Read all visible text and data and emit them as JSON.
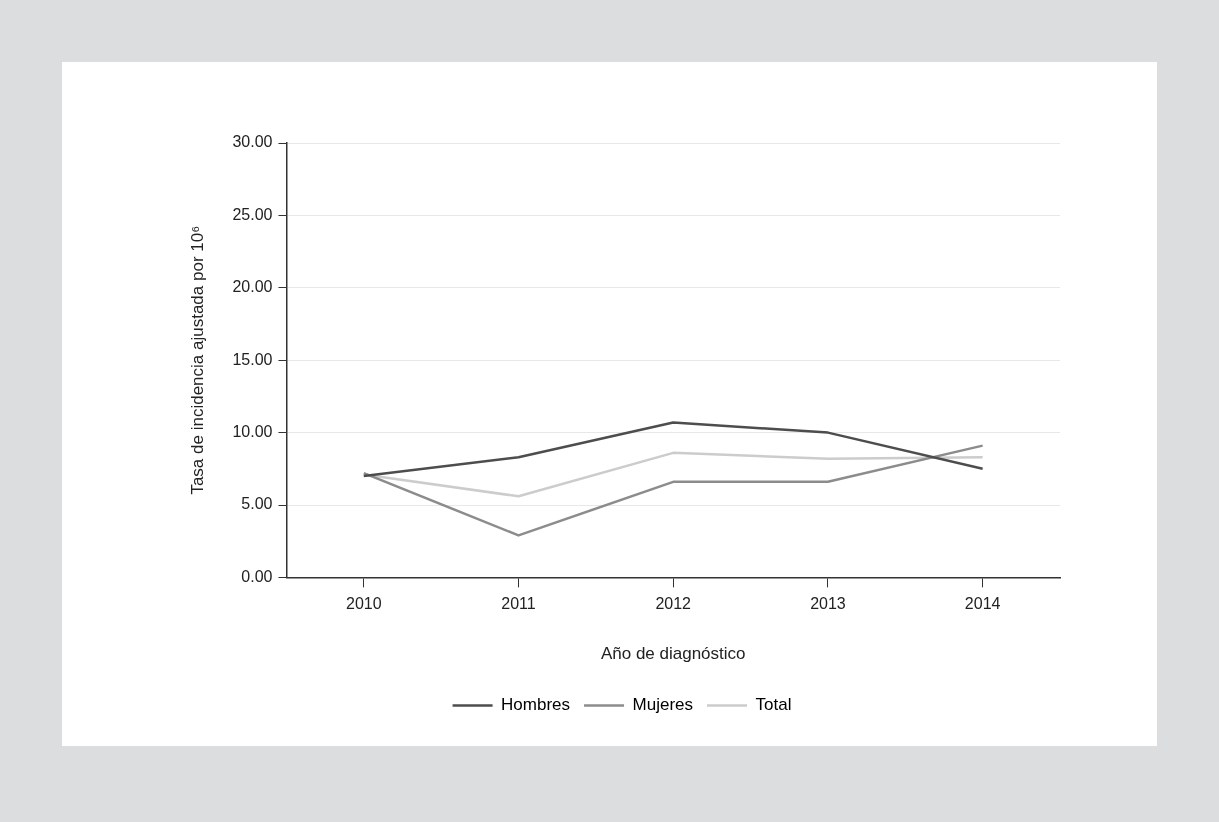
{
  "chart_data": {
    "type": "line",
    "xlabel": "Año de diagnóstico",
    "ylabel": "Tasa de incidencia ajustada por 10⁶",
    "categories": [
      "2010",
      "2011",
      "2012",
      "2013",
      "2014"
    ],
    "series": [
      {
        "name": "Hombres",
        "color": "#4d4d4d",
        "values": [
          7.0,
          8.3,
          10.7,
          10.0,
          7.5
        ]
      },
      {
        "name": "Mujeres",
        "color": "#8c8c8c",
        "values": [
          7.2,
          2.9,
          6.6,
          6.6,
          9.1
        ]
      },
      {
        "name": "Total",
        "color": "#cccccc",
        "values": [
          7.1,
          5.6,
          8.6,
          8.2,
          8.3
        ]
      }
    ],
    "ylim": [
      0,
      30
    ],
    "yticks": [
      {
        "value": 0,
        "label": "0.00"
      },
      {
        "value": 5,
        "label": "5.00"
      },
      {
        "value": 10,
        "label": "10.00"
      },
      {
        "value": 15,
        "label": "15.00"
      },
      {
        "value": 20,
        "label": "20.00"
      },
      {
        "value": 25,
        "label": "25.00"
      },
      {
        "value": 30,
        "label": "30.00"
      }
    ],
    "grid": "y",
    "legend": "bottom",
    "marker": "none",
    "line_style": "solid"
  }
}
